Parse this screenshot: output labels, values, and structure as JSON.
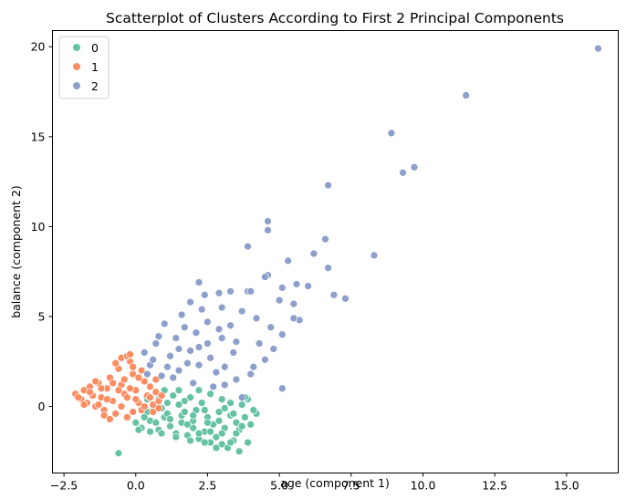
{
  "chart_data": {
    "type": "scatter",
    "title": "Scatterplot of Clusters According to First 2 Principal Components",
    "xlabel": "age (component 1)",
    "ylabel": "balance (component 2)",
    "xlim": [
      -2.9,
      16.8
    ],
    "ylim": [
      -3.7,
      20.9
    ],
    "xticks": [
      -2.5,
      0.0,
      2.5,
      5.0,
      7.5,
      10.0,
      12.5,
      15.0
    ],
    "xtick_labels": [
      "−2.5",
      "0.0",
      "2.5",
      "5.0",
      "7.5",
      "10.0",
      "12.5",
      "15.0"
    ],
    "yticks": [
      0,
      5,
      10,
      15,
      20
    ],
    "ytick_labels": [
      "0",
      "5",
      "10",
      "15",
      "20"
    ],
    "grid": false,
    "legend": {
      "placement": "top-left",
      "entries": [
        "0",
        "1",
        "2"
      ]
    },
    "series": [
      {
        "name": "0",
        "color": "#66c2a5",
        "points": [
          [
            0.0,
            -0.9
          ],
          [
            0.2,
            -1.2
          ],
          [
            0.5,
            -0.8
          ],
          [
            0.8,
            -1.3
          ],
          [
            1.0,
            -0.6
          ],
          [
            1.2,
            -1.1
          ],
          [
            1.4,
            -1.5
          ],
          [
            1.6,
            -0.9
          ],
          [
            1.8,
            -1.6
          ],
          [
            2.0,
            -1.2
          ],
          [
            2.2,
            -1.8
          ],
          [
            2.4,
            -1.4
          ],
          [
            2.6,
            -2.0
          ],
          [
            2.8,
            -1.7
          ],
          [
            3.0,
            -2.1
          ],
          [
            3.2,
            -2.3
          ],
          [
            3.4,
            -1.9
          ],
          [
            3.6,
            -1.3
          ],
          [
            3.8,
            -0.6
          ],
          [
            4.0,
            -1.0
          ],
          [
            4.2,
            -0.4
          ],
          [
            3.9,
            0.4
          ],
          [
            3.7,
            0.1
          ],
          [
            3.3,
            -0.5
          ],
          [
            2.9,
            -0.3
          ],
          [
            2.5,
            -0.6
          ],
          [
            2.1,
            -0.2
          ],
          [
            1.7,
            0.3
          ],
          [
            1.3,
            0.6
          ],
          [
            1.0,
            0.9
          ],
          [
            0.8,
            0.4
          ],
          [
            0.6,
            0.0
          ],
          [
            0.4,
            -0.3
          ],
          [
            0.9,
            -0.1
          ],
          [
            1.5,
            0.1
          ],
          [
            1.9,
            0.5
          ],
          [
            2.3,
            0.2
          ],
          [
            2.7,
            -1.0
          ],
          [
            3.1,
            -1.2
          ],
          [
            3.5,
            -0.9
          ],
          [
            1.1,
            -0.4
          ],
          [
            1.6,
            -0.5
          ],
          [
            2.0,
            -0.8
          ],
          [
            2.6,
            -1.4
          ],
          [
            3.0,
            -1.5
          ],
          [
            3.3,
            -2.0
          ],
          [
            2.8,
            -2.3
          ],
          [
            2.4,
            -2.0
          ],
          [
            1.9,
            -1.9
          ],
          [
            1.4,
            -1.7
          ],
          [
            0.9,
            -1.5
          ],
          [
            0.5,
            -1.4
          ],
          [
            0.1,
            -1.3
          ],
          [
            3.7,
            -1.1
          ],
          [
            4.1,
            -0.2
          ],
          [
            3.8,
            0.5
          ],
          [
            3.6,
            -2.5
          ],
          [
            3.9,
            -2.0
          ],
          [
            2.2,
            -1.5
          ],
          [
            1.8,
            -1.0
          ],
          [
            -0.6,
            -2.6
          ],
          [
            0.3,
            -0.6
          ],
          [
            0.7,
            -0.9
          ],
          [
            1.2,
            -0.7
          ],
          [
            2.0,
            -0.5
          ],
          [
            2.5,
            -0.9
          ],
          [
            2.9,
            -0.8
          ],
          [
            3.4,
            -0.4
          ],
          [
            1.5,
            0.9
          ],
          [
            2.2,
            0.9
          ],
          [
            2.6,
            0.7
          ],
          [
            3.0,
            0.4
          ],
          [
            3.3,
            0.2
          ],
          [
            0.2,
            -0.1
          ],
          [
            0.4,
            0.4
          ],
          [
            1.1,
            0.2
          ],
          [
            1.7,
            -0.3
          ],
          [
            2.4,
            -0.2
          ],
          [
            3.1,
            -0.1
          ],
          [
            3.5,
            -1.5
          ]
        ]
      },
      {
        "name": "1",
        "color": "#fc8d62",
        "points": [
          [
            -2.1,
            0.7
          ],
          [
            -1.9,
            0.4
          ],
          [
            -1.8,
            0.9
          ],
          [
            -1.7,
            0.2
          ],
          [
            -1.6,
            1.1
          ],
          [
            -1.5,
            0.6
          ],
          [
            -1.4,
            0.0
          ],
          [
            -1.3,
            1.3
          ],
          [
            -1.2,
            0.5
          ],
          [
            -1.1,
            -0.2
          ],
          [
            -1.0,
            1.0
          ],
          [
            -0.9,
            1.6
          ],
          [
            -0.8,
            0.3
          ],
          [
            -0.7,
            -0.4
          ],
          [
            -0.6,
            2.1
          ],
          [
            -0.5,
            1.2
          ],
          [
            -0.4,
            0.7
          ],
          [
            -0.3,
            -0.6
          ],
          [
            -0.2,
            2.5
          ],
          [
            -0.1,
            1.8
          ],
          [
            0.0,
            0.9
          ],
          [
            0.1,
            0.2
          ],
          [
            0.2,
            2.0
          ],
          [
            0.3,
            1.4
          ],
          [
            0.4,
            0.6
          ],
          [
            0.5,
            1.1
          ],
          [
            0.6,
            0.1
          ],
          [
            0.7,
            0.8
          ],
          [
            0.8,
            0.3
          ],
          [
            0.9,
            0.6
          ],
          [
            -0.5,
            2.7
          ],
          [
            -0.3,
            2.8
          ],
          [
            -0.1,
            2.2
          ],
          [
            0.1,
            1.6
          ],
          [
            -1.6,
            0.8
          ],
          [
            -1.3,
            0.1
          ],
          [
            -1.0,
            0.4
          ],
          [
            -0.8,
            1.3
          ],
          [
            -0.6,
            0.9
          ],
          [
            -0.4,
            1.5
          ],
          [
            -0.2,
            1.0
          ],
          [
            0.0,
            0.4
          ],
          [
            0.2,
            -0.2
          ],
          [
            0.4,
            1.8
          ],
          [
            -1.8,
            0.1
          ],
          [
            -2.0,
            0.5
          ],
          [
            -1.1,
            -0.5
          ],
          [
            -0.9,
            -0.7
          ],
          [
            -0.7,
            2.4
          ],
          [
            -0.5,
            0.0
          ],
          [
            -0.3,
            0.5
          ],
          [
            -0.1,
            -0.3
          ],
          [
            0.3,
            0.0
          ],
          [
            0.5,
            0.5
          ],
          [
            0.7,
            1.5
          ],
          [
            -1.4,
            1.4
          ],
          [
            -1.2,
            1.0
          ],
          [
            -0.2,
            2.9
          ],
          [
            0.6,
            -0.3
          ],
          [
            0.8,
            -0.1
          ]
        ]
      },
      {
        "name": "2",
        "color": "#8da0cb",
        "points": [
          [
            16.1,
            19.9
          ],
          [
            11.5,
            17.3
          ],
          [
            8.9,
            15.2
          ],
          [
            9.7,
            13.3
          ],
          [
            9.3,
            13.0
          ],
          [
            6.7,
            12.3
          ],
          [
            4.6,
            10.3
          ],
          [
            4.6,
            9.8
          ],
          [
            6.6,
            9.3
          ],
          [
            3.9,
            8.9
          ],
          [
            6.2,
            8.5
          ],
          [
            8.3,
            8.4
          ],
          [
            5.3,
            8.1
          ],
          [
            6.7,
            7.7
          ],
          [
            4.6,
            7.3
          ],
          [
            4.5,
            7.2
          ],
          [
            2.2,
            6.9
          ],
          [
            5.6,
            6.8
          ],
          [
            6.0,
            6.7
          ],
          [
            5.1,
            6.6
          ],
          [
            3.3,
            6.4
          ],
          [
            3.9,
            6.4
          ],
          [
            4.0,
            6.4
          ],
          [
            2.9,
            6.3
          ],
          [
            6.9,
            6.2
          ],
          [
            7.3,
            6.0
          ],
          [
            5.0,
            5.9
          ],
          [
            5.5,
            5.7
          ],
          [
            3.0,
            5.5
          ],
          [
            3.7,
            5.3
          ],
          [
            5.7,
            4.8
          ],
          [
            5.5,
            4.9
          ],
          [
            4.7,
            4.4
          ],
          [
            4.2,
            4.9
          ],
          [
            2.5,
            4.7
          ],
          [
            5.1,
            4.0
          ],
          [
            3.5,
            3.6
          ],
          [
            4.3,
            3.5
          ],
          [
            4.1,
            2.2
          ],
          [
            5.1,
            1.0
          ],
          [
            3.5,
            1.5
          ],
          [
            3.1,
            1.2
          ],
          [
            2.8,
            1.9
          ],
          [
            2.2,
            2.3
          ],
          [
            1.5,
            2.0
          ],
          [
            0.9,
            1.7
          ],
          [
            0.5,
            2.3
          ],
          [
            1.2,
            2.8
          ],
          [
            1.9,
            3.1
          ],
          [
            2.6,
            2.7
          ],
          [
            0.3,
            3.0
          ],
          [
            0.7,
            3.5
          ],
          [
            1.4,
            3.8
          ],
          [
            2.1,
            4.1
          ],
          [
            2.9,
            4.3
          ],
          [
            1.0,
            4.6
          ],
          [
            1.6,
            5.1
          ],
          [
            2.3,
            5.4
          ],
          [
            3.4,
            3.0
          ],
          [
            4.5,
            2.6
          ],
          [
            1.8,
            2.4
          ],
          [
            1.1,
            2.2
          ],
          [
            2.5,
            3.5
          ],
          [
            0.6,
            2.6
          ],
          [
            3.1,
            2.2
          ],
          [
            4.0,
            1.8
          ],
          [
            3.7,
            0.5
          ],
          [
            1.3,
            1.6
          ],
          [
            2.0,
            1.3
          ],
          [
            2.7,
            1.1
          ],
          [
            0.4,
            1.8
          ],
          [
            1.7,
            4.4
          ],
          [
            2.4,
            6.2
          ],
          [
            1.9,
            5.8
          ],
          [
            0.8,
            3.9
          ],
          [
            3.3,
            4.5
          ],
          [
            4.8,
            3.2
          ],
          [
            2.2,
            3.3
          ],
          [
            1.5,
            3.2
          ],
          [
            3.0,
            3.8
          ]
        ]
      }
    ]
  }
}
